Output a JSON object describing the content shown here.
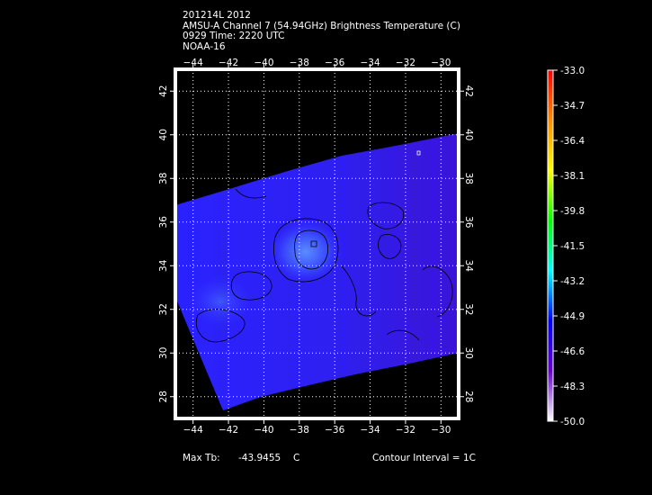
{
  "header": {
    "line1": "201214L 2012",
    "line2": "AMSU-A Channel 7 (54.94GHz) Brightness Temperature (C)",
    "line3": "0929 Time: 2220 UTC",
    "line4": "NOAA-16"
  },
  "map": {
    "lon_range": [
      -45,
      -29
    ],
    "lat_range": [
      27,
      43
    ],
    "lon_ticks": [
      -44,
      -42,
      -40,
      -38,
      -36,
      -34,
      -32,
      -30
    ],
    "lat_ticks": [
      28,
      30,
      32,
      34,
      36,
      38,
      40,
      42
    ],
    "lon_tick_labels": [
      "−44",
      "−42",
      "−40",
      "−38",
      "−36",
      "−34",
      "−32",
      "−30"
    ],
    "lat_tick_labels": [
      "28",
      "30",
      "32",
      "34",
      "36",
      "38",
      "40",
      "42"
    ],
    "grid": true
  },
  "colorbar": {
    "labels": [
      "-33.0",
      "-34.7",
      "-36.4",
      "-38.1",
      "-39.8",
      "-41.5",
      "-43.2",
      "-44.9",
      "-46.6",
      "-48.3",
      "-50.0"
    ],
    "colors": [
      "#ff0000",
      "#ff8c00",
      "#ffff00",
      "#00ff00",
      "#00ffff",
      "#0000ff",
      "#6600cc",
      "#ffffff"
    ]
  },
  "footer": {
    "max_tb_label": "Max Tb:",
    "max_tb_value": "-43.9455",
    "max_tb_unit": "C",
    "contour_interval": "Contour Interval = 1C"
  }
}
